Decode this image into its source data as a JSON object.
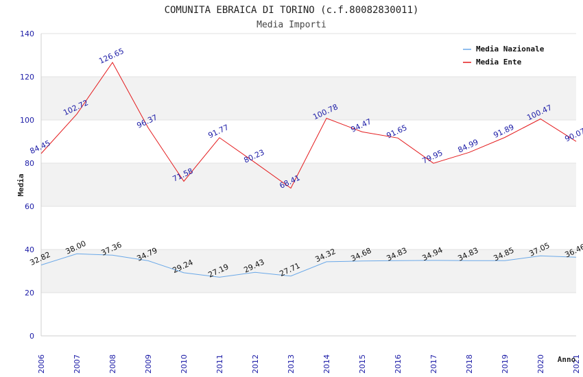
{
  "chart_data": {
    "type": "line",
    "title": "COMUNITA EBRAICA DI TORINO (c.f.80082830011)",
    "subtitle": "Media Importi",
    "xlabel": "Anno",
    "ylabel": "Media",
    "ylim": [
      0,
      140
    ],
    "yticks": [
      0,
      20,
      40,
      60,
      80,
      100,
      120,
      140
    ],
    "x": [
      "2006",
      "2007",
      "2008",
      "2009",
      "2010",
      "2011",
      "2012",
      "2013",
      "2014",
      "2015",
      "2016",
      "2017",
      "2018",
      "2019",
      "2020",
      "2021"
    ],
    "legend_position": "top-right",
    "series": [
      {
        "name": "Media Nazionale",
        "color": "#6aa8e8",
        "label_color": "#111111",
        "values": [
          32.82,
          38.0,
          37.36,
          34.79,
          29.24,
          27.19,
          29.43,
          27.71,
          34.32,
          34.68,
          34.83,
          34.94,
          34.83,
          34.85,
          37.05,
          36.46
        ],
        "labels": [
          "32.82",
          "38.00",
          "37.36",
          "34.79",
          "29.24",
          "27.19",
          "29.43",
          "27.71",
          "34.32",
          "34.68",
          "34.83",
          "34.94",
          "34.83",
          "34.85",
          "37.05",
          "36.46"
        ]
      },
      {
        "name": "Media Ente",
        "color": "#e41a1c",
        "label_color": "#1a1aa6",
        "values": [
          84.45,
          102.72,
          126.65,
          96.37,
          71.58,
          91.77,
          80.23,
          68.41,
          100.78,
          94.47,
          91.65,
          79.95,
          84.99,
          91.89,
          100.47,
          90.07
        ],
        "labels": [
          "84.45",
          "102.72",
          "126.65",
          "96.37",
          "71.58",
          "91.77",
          "80.23",
          "68.41",
          "100.78",
          "94.47",
          "91.65",
          "79.95",
          "84.99",
          "91.89",
          "100.47",
          "90.07"
        ]
      }
    ]
  }
}
